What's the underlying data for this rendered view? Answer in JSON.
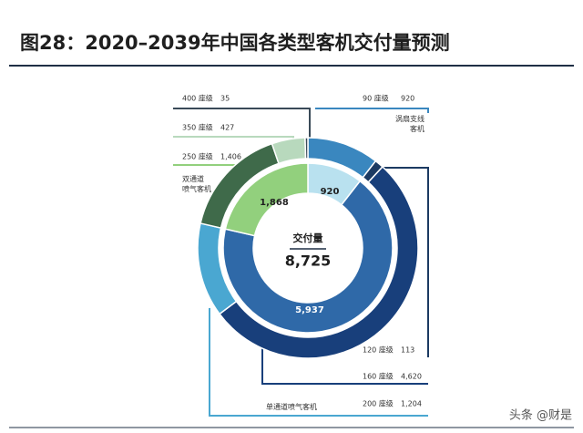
{
  "chart_data": {
    "type": "nested-donut",
    "title": "图28：2020–2039年中国各类型客机交付量预测",
    "center_title": "交付量",
    "center_value": "8,725",
    "inner": {
      "categories": [
        "涡扇支线客机",
        "单通道喷气客机",
        "双通道喷气客机"
      ],
      "values": [
        920,
        5937,
        1868
      ],
      "value_labels": [
        "920",
        "5,937",
        "1,868"
      ],
      "colors": [
        "#b9e1ef",
        "#2f69a8",
        "#92d07d"
      ]
    },
    "outer": {
      "categories": [
        "90 座级",
        "120 座级",
        "160 座级",
        "200 座级",
        "250 座级",
        "350 座级",
        "400 座级"
      ],
      "values": [
        920,
        113,
        4620,
        1204,
        1406,
        427,
        35
      ],
      "value_labels": [
        "920",
        "113",
        "4,620",
        "1,204",
        "1,406",
        "427",
        "35"
      ],
      "colors": [
        "#3a87bf",
        "#1c3a62",
        "#183f7b",
        "#4aa7d1",
        "#3f6a4a",
        "#b8d9bd",
        "#3a4a58"
      ]
    },
    "watermark": "头条 @财是"
  }
}
